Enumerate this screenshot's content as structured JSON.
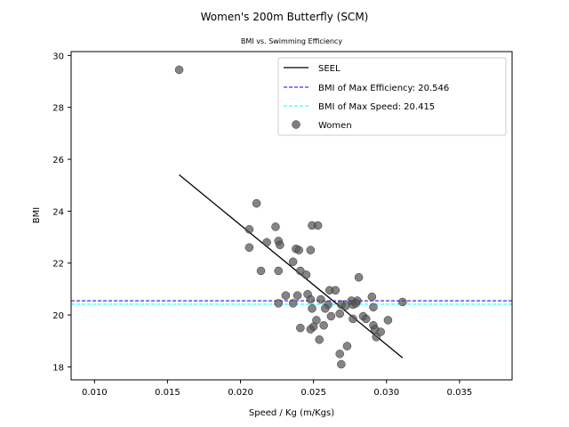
{
  "chart_data": {
    "type": "scatter",
    "title": "Women's 200m Butterfly (SCM)",
    "subtitle": "BMI vs. Swimming Efficiency",
    "xlabel": "Speed / Kg (m/Kgs)",
    "ylabel": "BMI",
    "xlim": [
      0.0084,
      0.0386
    ],
    "ylim": [
      17.5,
      30.15
    ],
    "xticks": [
      "0.010",
      "0.015",
      "0.020",
      "0.025",
      "0.030",
      "0.035"
    ],
    "xtick_values": [
      0.01,
      0.015,
      0.02,
      0.025,
      0.03,
      0.035
    ],
    "yticks": [
      "18",
      "20",
      "22",
      "24",
      "26",
      "28",
      "30"
    ],
    "ytick_values": [
      18,
      20,
      22,
      24,
      26,
      28,
      30
    ],
    "grid": false,
    "legend_position": "top-right",
    "legend": [
      {
        "label": "SEEL",
        "style": "solid",
        "color": "#000000"
      },
      {
        "label": "BMI of Max Efficiency: 20.546",
        "style": "dashed",
        "color": "#0000ff"
      },
      {
        "label": "BMI of Max Speed: 20.415",
        "style": "dashed",
        "color": "#00ffff"
      },
      {
        "label": "Women",
        "style": "marker",
        "color": "#555555"
      }
    ],
    "seel_line": {
      "x": [
        0.0158,
        0.0311
      ],
      "y": [
        25.4,
        18.35
      ]
    },
    "hlines": [
      {
        "name": "BMI of Max Efficiency: 20.546",
        "y": 20.546,
        "color": "#0000ff"
      },
      {
        "name": "BMI of Max Speed: 20.415",
        "y": 20.415,
        "color": "#00ffff"
      }
    ],
    "series": [
      {
        "name": "Women",
        "color": "#555555",
        "points": [
          [
            0.0158,
            29.45
          ],
          [
            0.0211,
            24.3
          ],
          [
            0.0206,
            23.3
          ],
          [
            0.0224,
            23.4
          ],
          [
            0.0249,
            23.45
          ],
          [
            0.0253,
            23.45
          ],
          [
            0.0226,
            22.85
          ],
          [
            0.0218,
            22.8
          ],
          [
            0.0227,
            22.7
          ],
          [
            0.0238,
            22.55
          ],
          [
            0.024,
            22.5
          ],
          [
            0.0248,
            22.5
          ],
          [
            0.0206,
            22.6
          ],
          [
            0.0236,
            22.05
          ],
          [
            0.0214,
            21.7
          ],
          [
            0.0226,
            21.7
          ],
          [
            0.0241,
            21.7
          ],
          [
            0.0245,
            21.55
          ],
          [
            0.0281,
            21.45
          ],
          [
            0.0261,
            20.95
          ],
          [
            0.0265,
            20.95
          ],
          [
            0.0231,
            20.75
          ],
          [
            0.0239,
            20.75
          ],
          [
            0.0246,
            20.8
          ],
          [
            0.0248,
            20.6
          ],
          [
            0.0255,
            20.6
          ],
          [
            0.029,
            20.7
          ],
          [
            0.0276,
            20.55
          ],
          [
            0.028,
            20.55
          ],
          [
            0.0226,
            20.45
          ],
          [
            0.0236,
            20.45
          ],
          [
            0.026,
            20.4
          ],
          [
            0.0269,
            20.4
          ],
          [
            0.0272,
            20.35
          ],
          [
            0.0277,
            20.4
          ],
          [
            0.0279,
            20.45
          ],
          [
            0.0311,
            20.5
          ],
          [
            0.0249,
            20.25
          ],
          [
            0.0258,
            20.25
          ],
          [
            0.0291,
            20.3
          ],
          [
            0.0268,
            20.05
          ],
          [
            0.0262,
            19.95
          ],
          [
            0.0284,
            19.95
          ],
          [
            0.0286,
            19.85
          ],
          [
            0.0252,
            19.8
          ],
          [
            0.0277,
            19.85
          ],
          [
            0.0301,
            19.8
          ],
          [
            0.0257,
            19.6
          ],
          [
            0.025,
            19.55
          ],
          [
            0.0291,
            19.6
          ],
          [
            0.0241,
            19.5
          ],
          [
            0.0248,
            19.45
          ],
          [
            0.0292,
            19.45
          ],
          [
            0.0296,
            19.35
          ],
          [
            0.0293,
            19.15
          ],
          [
            0.0254,
            19.05
          ],
          [
            0.0273,
            18.8
          ],
          [
            0.0268,
            18.5
          ],
          [
            0.0269,
            18.1
          ]
        ]
      }
    ]
  }
}
